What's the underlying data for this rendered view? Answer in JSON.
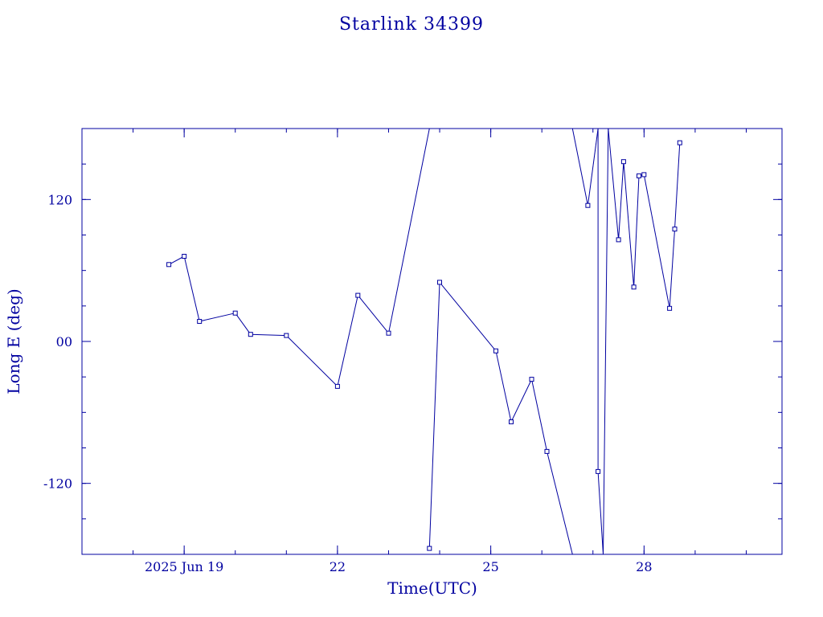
{
  "chart_data": {
    "type": "line",
    "title": "Starlink 34399",
    "xlabel": "Time(UTC)",
    "ylabel": "Long E (deg)",
    "x_unit": "day of June 2025",
    "xlim": [
      17.0,
      30.7
    ],
    "ylim": [
      -180,
      180
    ],
    "x_ticks": [
      {
        "value": 19,
        "label": "2025 Jun 19"
      },
      {
        "value": 22,
        "label": "22"
      },
      {
        "value": 25,
        "label": "25"
      },
      {
        "value": 28,
        "label": "28"
      }
    ],
    "y_ticks": [
      {
        "value": 120,
        "label": "120"
      },
      {
        "value": 0,
        "label": "00"
      },
      {
        "value": -120,
        "label": "-120"
      }
    ],
    "series": [
      {
        "points": [
          [
            18.7,
            65
          ],
          [
            19.0,
            72
          ],
          [
            19.3,
            17
          ],
          [
            20.0,
            24
          ],
          [
            20.3,
            6
          ],
          [
            21.0,
            5
          ],
          [
            22.0,
            -38
          ],
          [
            22.4,
            39
          ],
          [
            23.0,
            7
          ],
          [
            23.8,
            180
          ],
          [
            23.8,
            -175
          ],
          [
            24.0,
            50
          ],
          [
            25.1,
            -8
          ],
          [
            25.4,
            -68
          ],
          [
            25.8,
            -32
          ],
          [
            26.1,
            -93
          ],
          [
            26.6,
            -180
          ],
          [
            26.6,
            180
          ],
          [
            26.9,
            115
          ],
          [
            27.1,
            180
          ],
          [
            27.1,
            -110
          ],
          [
            27.2,
            -180
          ],
          [
            27.3,
            180
          ],
          [
            27.5,
            86
          ],
          [
            27.6,
            152
          ],
          [
            27.8,
            46
          ],
          [
            27.9,
            140
          ],
          [
            28.0,
            141
          ],
          [
            28.5,
            28
          ],
          [
            28.6,
            95
          ],
          [
            28.7,
            168
          ]
        ],
        "markers": [
          [
            18.7,
            65
          ],
          [
            19.0,
            72
          ],
          [
            19.3,
            17
          ],
          [
            20.0,
            24
          ],
          [
            20.3,
            6
          ],
          [
            21.0,
            5
          ],
          [
            22.0,
            -38
          ],
          [
            22.4,
            39
          ],
          [
            23.0,
            7
          ],
          [
            23.8,
            -175
          ],
          [
            24.0,
            50
          ],
          [
            25.1,
            -8
          ],
          [
            25.4,
            -68
          ],
          [
            25.8,
            -32
          ],
          [
            26.1,
            -93
          ],
          [
            26.9,
            115
          ],
          [
            27.1,
            -110
          ],
          [
            27.5,
            86
          ],
          [
            27.6,
            152
          ],
          [
            27.8,
            46
          ],
          [
            27.9,
            140
          ],
          [
            28.0,
            141
          ],
          [
            28.5,
            28
          ],
          [
            28.6,
            95
          ],
          [
            28.7,
            168
          ]
        ]
      }
    ],
    "colors": {
      "ink": "#0000a0"
    }
  }
}
